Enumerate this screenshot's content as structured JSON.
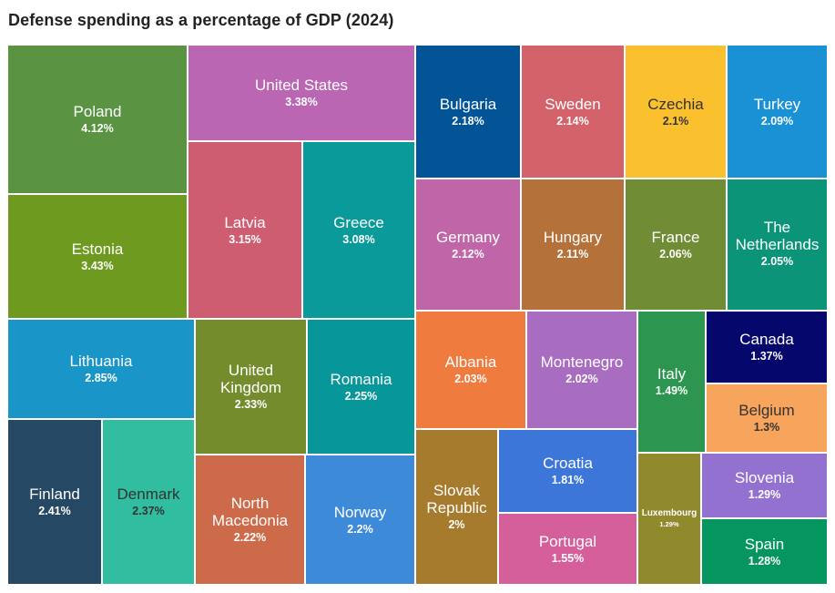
{
  "chart_data": {
    "type": "treemap",
    "title": "Defense spending as a percentage of GDP (2024)",
    "unit": "%",
    "items": [
      {
        "name": "Poland",
        "value": 4.12,
        "label": "4.12%",
        "color": "#5a9442"
      },
      {
        "name": "Estonia",
        "value": 3.43,
        "label": "3.43%",
        "color": "#6e9a1f"
      },
      {
        "name": "United States",
        "value": 3.38,
        "label": "3.38%",
        "color": "#bb66b3"
      },
      {
        "name": "Latvia",
        "value": 3.15,
        "label": "3.15%",
        "color": "#cf5d72"
      },
      {
        "name": "Greece",
        "value": 3.08,
        "label": "3.08%",
        "color": "#0b9a9a"
      },
      {
        "name": "Lithuania",
        "value": 2.85,
        "label": "2.85%",
        "color": "#1995c8"
      },
      {
        "name": "Finland",
        "value": 2.41,
        "label": "2.41%",
        "color": "#254965"
      },
      {
        "name": "Denmark",
        "value": 2.37,
        "label": "2.37%",
        "color": "#31bd9f"
      },
      {
        "name": "United Kingdom",
        "value": 2.33,
        "label": "2.33%",
        "color": "#748c2c"
      },
      {
        "name": "Romania",
        "value": 2.25,
        "label": "2.25%",
        "color": "#07969a"
      },
      {
        "name": "North Macedonia",
        "value": 2.22,
        "label": "2.22%",
        "color": "#cd6a49"
      },
      {
        "name": "Norway",
        "value": 2.2,
        "label": "2.2%",
        "color": "#3d8ad8"
      },
      {
        "name": "Bulgaria",
        "value": 2.18,
        "label": "2.18%",
        "color": "#035497"
      },
      {
        "name": "Sweden",
        "value": 2.14,
        "label": "2.14%",
        "color": "#d3626a"
      },
      {
        "name": "Germany",
        "value": 2.12,
        "label": "2.12%",
        "color": "#c066a8"
      },
      {
        "name": "Hungary",
        "value": 2.11,
        "label": "2.11%",
        "color": "#b4723a"
      },
      {
        "name": "Czechia",
        "value": 2.1,
        "label": "2.1%",
        "color": "#fbc02d"
      },
      {
        "name": "Turkey",
        "value": 2.09,
        "label": "2.09%",
        "color": "#1a91d4"
      },
      {
        "name": "France",
        "value": 2.06,
        "label": "2.06%",
        "color": "#708c34"
      },
      {
        "name": "The Netherlands",
        "value": 2.05,
        "label": "2.05%",
        "color": "#0c9479"
      },
      {
        "name": "Albania",
        "value": 2.03,
        "label": "2.03%",
        "color": "#ef7b3e"
      },
      {
        "name": "Montenegro",
        "value": 2.02,
        "label": "2.02%",
        "color": "#a86cc0"
      },
      {
        "name": "Slovak Republic",
        "value": 2,
        "label": "2%",
        "color": "#a67b2d"
      },
      {
        "name": "Croatia",
        "value": 1.81,
        "label": "1.81%",
        "color": "#3b76d8"
      },
      {
        "name": "Portugal",
        "value": 1.55,
        "label": "1.55%",
        "color": "#d45f9b"
      },
      {
        "name": "Italy",
        "value": 1.49,
        "label": "1.49%",
        "color": "#2c9650"
      },
      {
        "name": "Canada",
        "value": 1.37,
        "label": "1.37%",
        "color": "#05076d"
      },
      {
        "name": "Belgium",
        "value": 1.3,
        "label": "1.3%",
        "color": "#f7a45c"
      },
      {
        "name": "Luxembourg",
        "value": 1.29,
        "label": "1.29%",
        "color": "#908a2c"
      },
      {
        "name": "Slovenia",
        "value": 1.29,
        "label": "1.29%",
        "color": "#9371d1"
      },
      {
        "name": "Spain",
        "value": 1.28,
        "label": "1.28%",
        "color": "#05965f"
      }
    ]
  }
}
